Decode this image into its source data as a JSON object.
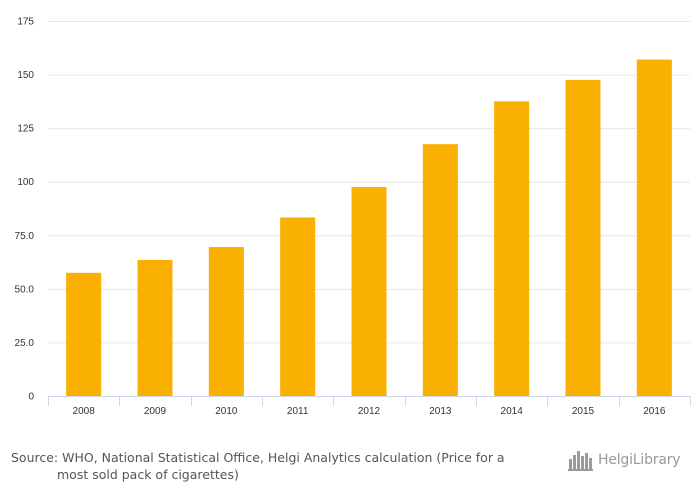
{
  "chart_data": {
    "type": "bar",
    "categories": [
      "2008",
      "2009",
      "2010",
      "2011",
      "2012",
      "2013",
      "2014",
      "2015",
      "2016"
    ],
    "values": [
      57.5,
      63.5,
      69.5,
      83.3,
      97.5,
      117.5,
      137.5,
      147.5,
      157.0
    ],
    "ylim": [
      0,
      175
    ],
    "yticks": [
      0,
      25,
      50,
      75,
      100,
      125,
      150,
      175
    ],
    "ytick_labels": [
      "0",
      "25.0",
      "50.0",
      "75.0",
      "100",
      "125",
      "150",
      "175"
    ],
    "title": "",
    "xlabel": "",
    "ylabel": "",
    "grid": true,
    "bar_color": "#F9B000",
    "grid_color": "#E6E6E6"
  },
  "footer": {
    "source_line1": "Source: WHO, National Statistical Office, Helgi Analytics calculation (Price for a",
    "source_line2": "most sold pack of cigarettes)"
  },
  "logo": {
    "text": "HelgiLibrary",
    "icon": "skyline-icon",
    "color": "#9A9A9A"
  }
}
